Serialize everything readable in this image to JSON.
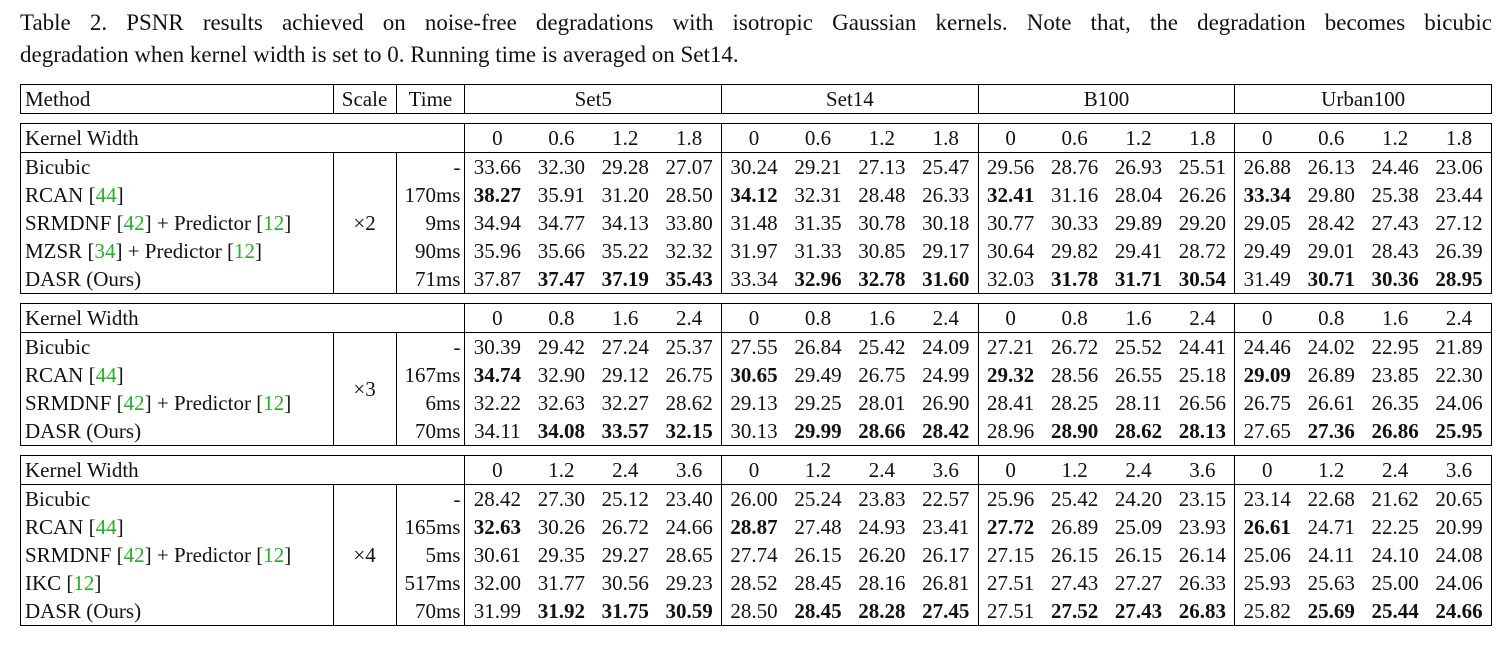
{
  "caption": {
    "line1": "Table 2. PSNR results achieved on noise-free degradations with isotropic Gaussian kernels. Note that, the degradation becomes bicubic",
    "line2": "degradation when kernel width is set to 0. Running time is averaged on Set14."
  },
  "table": {
    "headers": {
      "method": "Method",
      "scale": "Scale",
      "time": "Time",
      "datasets": [
        "Set5",
        "Set14",
        "B100",
        "Urban100"
      ]
    },
    "kernel_width_label": "Kernel Width",
    "groups": [
      {
        "scale": "×2",
        "kernel_widths": [
          "0",
          "0.6",
          "1.2",
          "1.8"
        ],
        "rows": [
          {
            "method": "Bicubic",
            "time": "-",
            "values": [
              "33.66",
              "32.30",
              "29.28",
              "27.07",
              "30.24",
              "29.21",
              "27.13",
              "25.47",
              "29.56",
              "28.76",
              "26.93",
              "25.51",
              "26.88",
              "26.13",
              "24.46",
              "23.06"
            ],
            "bold": []
          },
          {
            "method": "RCAN [44]",
            "time": "170ms",
            "values": [
              "38.27",
              "35.91",
              "31.20",
              "28.50",
              "34.12",
              "32.31",
              "28.48",
              "26.33",
              "32.41",
              "31.16",
              "28.04",
              "26.26",
              "33.34",
              "29.80",
              "25.38",
              "23.44"
            ],
            "bold": [
              0,
              4,
              8,
              12
            ]
          },
          {
            "method": "SRMDNF [42] + Predictor [12]",
            "time": "9ms",
            "values": [
              "34.94",
              "34.77",
              "34.13",
              "33.80",
              "31.48",
              "31.35",
              "30.78",
              "30.18",
              "30.77",
              "30.33",
              "29.89",
              "29.20",
              "29.05",
              "28.42",
              "27.43",
              "27.12"
            ],
            "bold": []
          },
          {
            "method": "MZSR [34] + Predictor [12]",
            "time": "90ms",
            "values": [
              "35.96",
              "35.66",
              "35.22",
              "32.32",
              "31.97",
              "31.33",
              "30.85",
              "29.17",
              "30.64",
              "29.82",
              "29.41",
              "28.72",
              "29.49",
              "29.01",
              "28.43",
              "26.39"
            ],
            "bold": []
          },
          {
            "method": "DASR (Ours)",
            "time": "71ms",
            "values": [
              "37.87",
              "37.47",
              "37.19",
              "35.43",
              "33.34",
              "32.96",
              "32.78",
              "31.60",
              "32.03",
              "31.78",
              "31.71",
              "30.54",
              "31.49",
              "30.71",
              "30.36",
              "28.95"
            ],
            "bold": [
              1,
              2,
              3,
              5,
              6,
              7,
              9,
              10,
              11,
              13,
              14,
              15
            ]
          }
        ]
      },
      {
        "scale": "×3",
        "kernel_widths": [
          "0",
          "0.8",
          "1.6",
          "2.4"
        ],
        "rows": [
          {
            "method": "Bicubic",
            "time": "-",
            "values": [
              "30.39",
              "29.42",
              "27.24",
              "25.37",
              "27.55",
              "26.84",
              "25.42",
              "24.09",
              "27.21",
              "26.72",
              "25.52",
              "24.41",
              "24.46",
              "24.02",
              "22.95",
              "21.89"
            ],
            "bold": []
          },
          {
            "method": "RCAN [44]",
            "time": "167ms",
            "values": [
              "34.74",
              "32.90",
              "29.12",
              "26.75",
              "30.65",
              "29.49",
              "26.75",
              "24.99",
              "29.32",
              "28.56",
              "26.55",
              "25.18",
              "29.09",
              "26.89",
              "23.85",
              "22.30"
            ],
            "bold": [
              0,
              4,
              8,
              12
            ]
          },
          {
            "method": "SRMDNF [42] + Predictor [12]",
            "time": "6ms",
            "values": [
              "32.22",
              "32.63",
              "32.27",
              "28.62",
              "29.13",
              "29.25",
              "28.01",
              "26.90",
              "28.41",
              "28.25",
              "28.11",
              "26.56",
              "26.75",
              "26.61",
              "26.35",
              "24.06"
            ],
            "bold": []
          },
          {
            "method": "DASR (Ours)",
            "time": "70ms",
            "values": [
              "34.11",
              "34.08",
              "33.57",
              "32.15",
              "30.13",
              "29.99",
              "28.66",
              "28.42",
              "28.96",
              "28.90",
              "28.62",
              "28.13",
              "27.65",
              "27.36",
              "26.86",
              "25.95"
            ],
            "bold": [
              1,
              2,
              3,
              5,
              6,
              7,
              9,
              10,
              11,
              13,
              14,
              15
            ]
          }
        ]
      },
      {
        "scale": "×4",
        "kernel_widths": [
          "0",
          "1.2",
          "2.4",
          "3.6"
        ],
        "rows": [
          {
            "method": "Bicubic",
            "time": "-",
            "values": [
              "28.42",
              "27.30",
              "25.12",
              "23.40",
              "26.00",
              "25.24",
              "23.83",
              "22.57",
              "25.96",
              "25.42",
              "24.20",
              "23.15",
              "23.14",
              "22.68",
              "21.62",
              "20.65"
            ],
            "bold": []
          },
          {
            "method": "RCAN [44]",
            "time": "165ms",
            "values": [
              "32.63",
              "30.26",
              "26.72",
              "24.66",
              "28.87",
              "27.48",
              "24.93",
              "23.41",
              "27.72",
              "26.89",
              "25.09",
              "23.93",
              "26.61",
              "24.71",
              "22.25",
              "20.99"
            ],
            "bold": [
              0,
              4,
              8,
              12
            ]
          },
          {
            "method": "SRMDNF [42] + Predictor [12]",
            "time": "5ms",
            "values": [
              "30.61",
              "29.35",
              "29.27",
              "28.65",
              "27.74",
              "26.15",
              "26.20",
              "26.17",
              "27.15",
              "26.15",
              "26.15",
              "26.14",
              "25.06",
              "24.11",
              "24.10",
              "24.08"
            ],
            "bold": []
          },
          {
            "method": "IKC [12]",
            "time": "517ms",
            "values": [
              "32.00",
              "31.77",
              "30.56",
              "29.23",
              "28.52",
              "28.45",
              "28.16",
              "26.81",
              "27.51",
              "27.43",
              "27.27",
              "26.33",
              "25.93",
              "25.63",
              "25.00",
              "24.06"
            ],
            "bold": []
          },
          {
            "method": "DASR (Ours)",
            "time": "70ms",
            "values": [
              "31.99",
              "31.92",
              "31.75",
              "30.59",
              "28.50",
              "28.45",
              "28.28",
              "27.45",
              "27.51",
              "27.52",
              "27.43",
              "26.83",
              "25.82",
              "25.69",
              "25.44",
              "24.66"
            ],
            "bold": [
              1,
              2,
              3,
              5,
              6,
              7,
              9,
              10,
              11,
              13,
              14,
              15
            ]
          }
        ]
      }
    ]
  },
  "colors": {
    "reference": "#22b022",
    "text": "#111111",
    "rule": "#000000"
  }
}
